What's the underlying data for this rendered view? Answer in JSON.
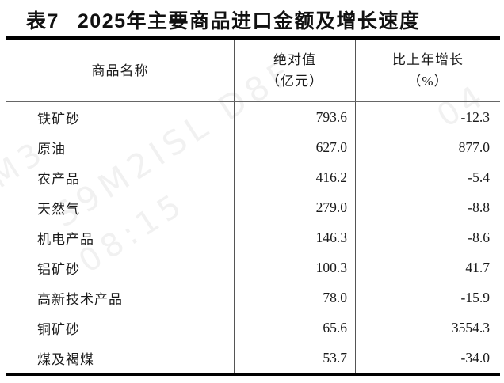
{
  "title": {
    "label": "表7",
    "text": "2025年主要商品进口金额及增长速度"
  },
  "table": {
    "columns": [
      {
        "header": "商品名称"
      },
      {
        "header_line1": "绝对值",
        "header_line2": "（亿元）"
      },
      {
        "header_line1": "比上年增长",
        "header_line2": "（%）"
      }
    ],
    "rows": [
      {
        "name": "铁矿砂",
        "value": "793.6",
        "growth": "-12.3"
      },
      {
        "name": "原油",
        "value": "627.0",
        "growth": "877.0"
      },
      {
        "name": "农产品",
        "value": "416.2",
        "growth": "-5.4"
      },
      {
        "name": "天然气",
        "value": "279.0",
        "growth": "-8.8"
      },
      {
        "name": "机电产品",
        "value": "146.3",
        "growth": "-8.6"
      },
      {
        "name": "铝矿砂",
        "value": "100.3",
        "growth": "41.7"
      },
      {
        "name": "高新技术产品",
        "value": "78.0",
        "growth": "-15.9"
      },
      {
        "name": "铜矿砂",
        "value": "65.6",
        "growth": "3554.3"
      },
      {
        "name": "煤及褐煤",
        "value": "53.7",
        "growth": "-34.0"
      }
    ]
  },
  "watermark": {
    "fragments": [
      "S9M2ISL D8F",
      "08:15",
      "M3",
      "04"
    ]
  },
  "colors": {
    "text": "#1a1a1a",
    "border": "#000000",
    "divider": "#555555"
  }
}
